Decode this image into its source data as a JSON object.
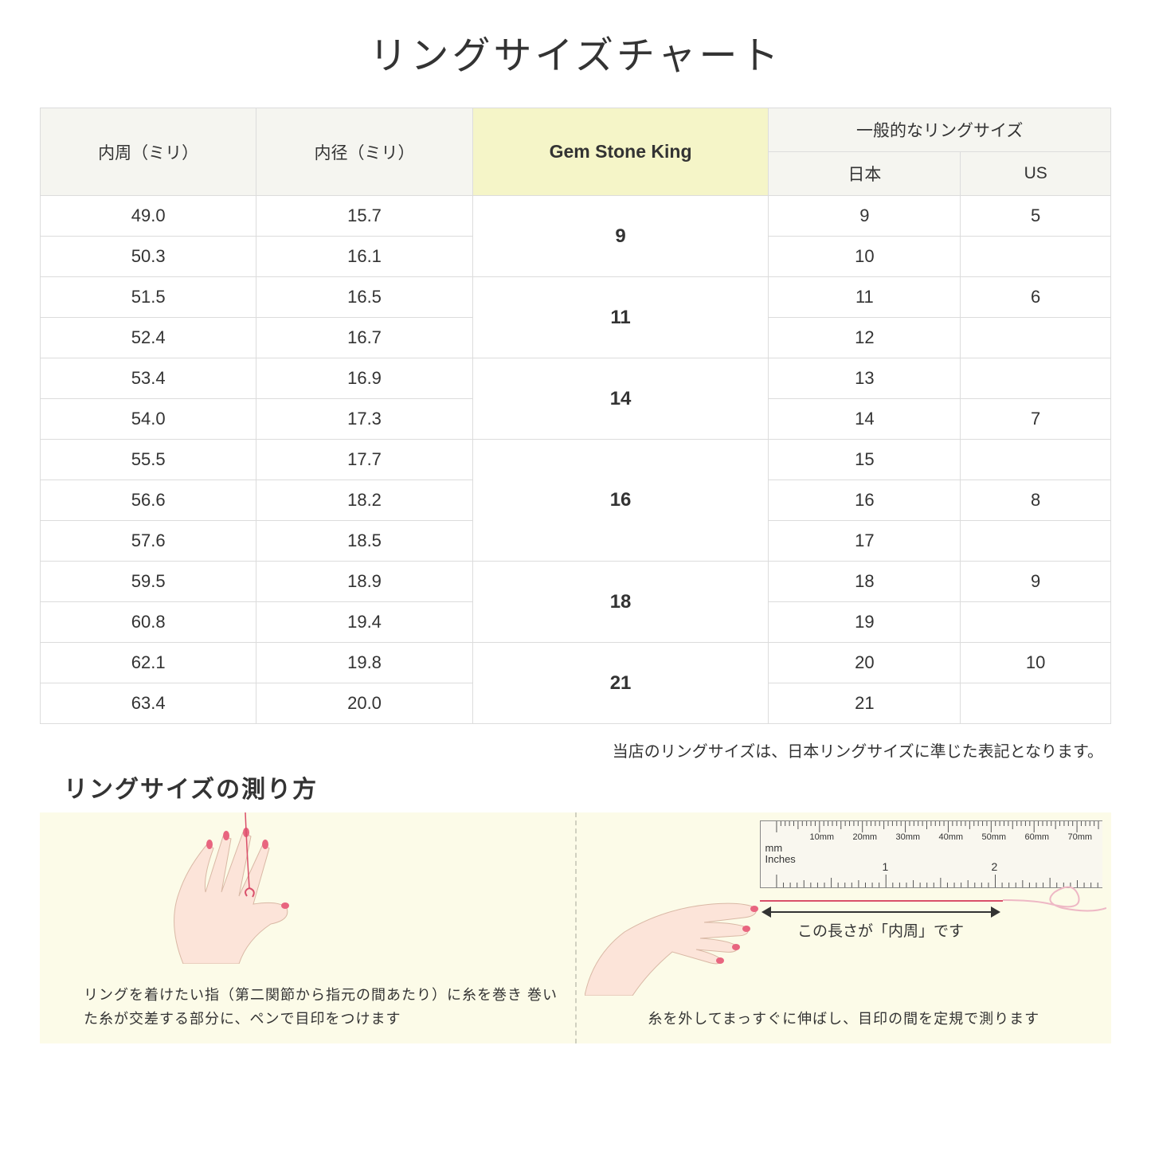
{
  "title": "リングサイズチャート",
  "headers": {
    "circumference": "内周（ミリ）",
    "diameter": "内径（ミリ）",
    "gsk": "Gem Stone King",
    "common": "一般的なリングサイズ",
    "japan": "日本",
    "us": "US"
  },
  "rows": [
    {
      "c": "49.0",
      "d": "15.7",
      "jp": "9",
      "us": "5"
    },
    {
      "c": "50.3",
      "d": "16.1",
      "jp": "10",
      "us": ""
    },
    {
      "c": "51.5",
      "d": "16.5",
      "jp": "11",
      "us": "6"
    },
    {
      "c": "52.4",
      "d": "16.7",
      "jp": "12",
      "us": ""
    },
    {
      "c": "53.4",
      "d": "16.9",
      "jp": "13",
      "us": ""
    },
    {
      "c": "54.0",
      "d": "17.3",
      "jp": "14",
      "us": "7"
    },
    {
      "c": "55.5",
      "d": "17.7",
      "jp": "15",
      "us": ""
    },
    {
      "c": "56.6",
      "d": "18.2",
      "jp": "16",
      "us": "8"
    },
    {
      "c": "57.6",
      "d": "18.5",
      "jp": "17",
      "us": ""
    },
    {
      "c": "59.5",
      "d": "18.9",
      "jp": "18",
      "us": "9"
    },
    {
      "c": "60.8",
      "d": "19.4",
      "jp": "19",
      "us": ""
    },
    {
      "c": "62.1",
      "d": "19.8",
      "jp": "20",
      "us": "10"
    },
    {
      "c": "63.4",
      "d": "20.0",
      "jp": "21",
      "us": ""
    }
  ],
  "gsk_groups": [
    {
      "rowspan": 2,
      "val": "9"
    },
    {
      "rowspan": 2,
      "val": "11"
    },
    {
      "rowspan": 2,
      "val": "14"
    },
    {
      "rowspan": 3,
      "val": "16"
    },
    {
      "rowspan": 2,
      "val": "18"
    },
    {
      "rowspan": 2,
      "val": "21"
    }
  ],
  "note": "当店のリングサイズは、日本リングサイズに準じた表記となります。",
  "howto": {
    "title": "リングサイズの測り方",
    "left_caption": "リングを着けたい指（第二関節から指元の間あたり）に糸を巻き\n巻いた糸が交差する部分に、ペンで目印をつけます",
    "right_caption": "糸を外してまっすぐに伸ばし、目印の間を定規で測ります",
    "measure_label": "この長さが「内周」です",
    "ruler_mm_label": "mm",
    "ruler_in_label": "Inches",
    "ruler_mm": [
      "10mm",
      "20mm",
      "30mm",
      "40mm",
      "50mm",
      "60mm",
      "70mm"
    ],
    "ruler_in": [
      "1",
      "2"
    ]
  },
  "colors": {
    "header_bg": "#f5f5f0",
    "highlight_bg": "#f5f5c8",
    "border": "#dcdcdc",
    "howto_bg": "#fcfbe8",
    "thread": "#d94f6a",
    "skin": "#fce4d9",
    "nail": "#e8657f"
  }
}
